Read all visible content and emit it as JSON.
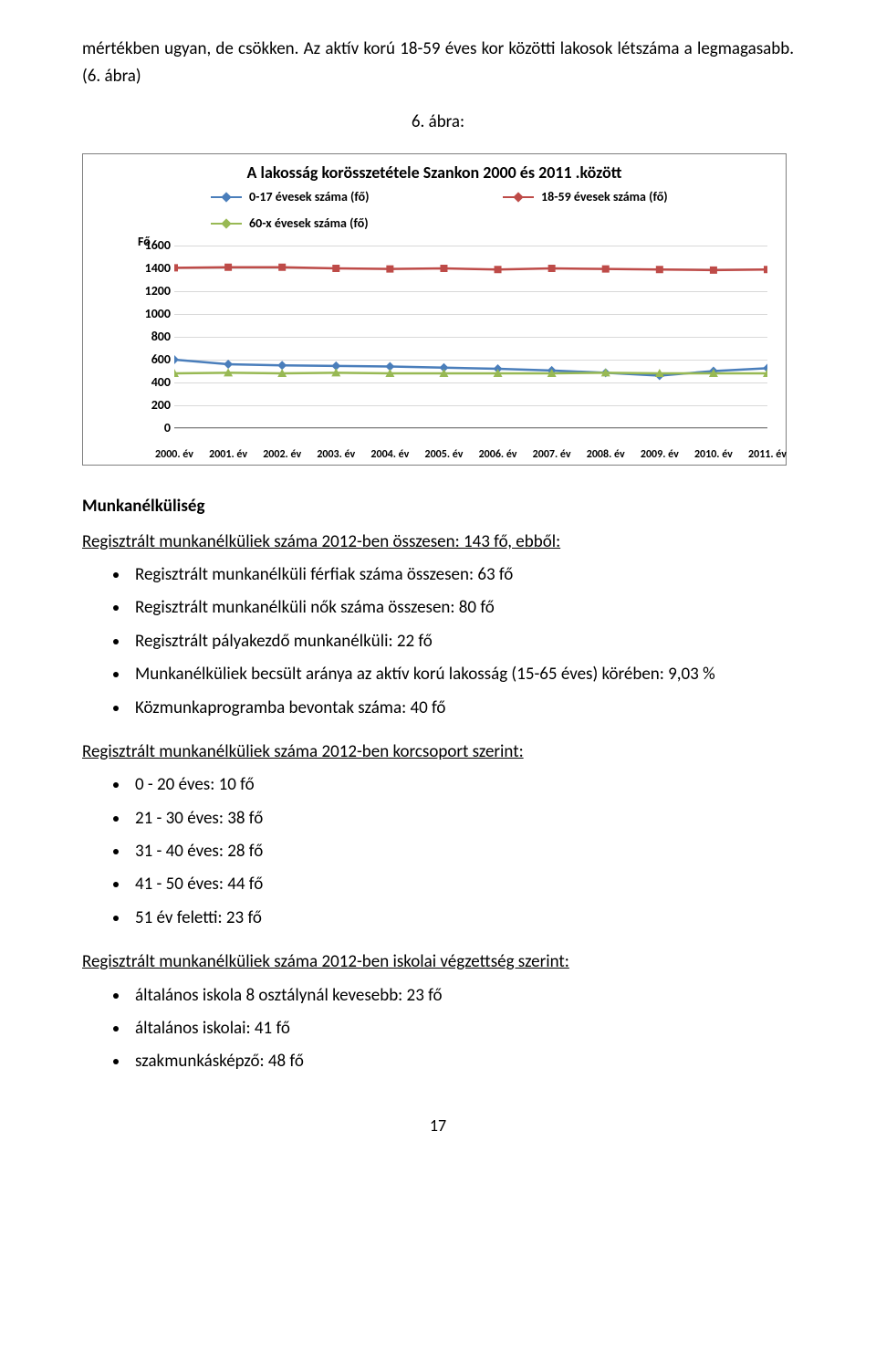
{
  "intro": {
    "line1": "mértékben ugyan, de csökken. Az aktív korú 18-59 éves kor közötti lakosok létszáma a legmagasabb. (6. ábra)",
    "fig_label": "6. ábra:"
  },
  "chart": {
    "title": "A lakosság korösszetétele Szankon 2000 és 2011 .között",
    "y_axis_title": "Fő",
    "legend": [
      {
        "label": "0-17 évesek száma (fő)",
        "color": "#4a7ebb"
      },
      {
        "label": "18-59 évesek száma (fő)",
        "color": "#be4b48"
      },
      {
        "label": "60-x évesek száma (fő)",
        "color": "#98b954"
      }
    ],
    "y_ticks": [
      "0",
      "200",
      "400",
      "600",
      "800",
      "1000",
      "1200",
      "1400",
      "1600"
    ],
    "x_labels": [
      "2000. év",
      "2001. év",
      "2002. év",
      "2003. év",
      "2004. év",
      "2005. év",
      "2006. év",
      "2007. év",
      "2008. év",
      "2009. év",
      "2010. év",
      "2011. év"
    ],
    "y_max": 1600,
    "series": [
      {
        "color": "#4a7ebb",
        "marker": "diamond",
        "values": [
          600,
          560,
          550,
          545,
          540,
          530,
          520,
          505,
          485,
          460,
          500,
          525
        ]
      },
      {
        "color": "#be4b48",
        "marker": "square",
        "values": [
          1405,
          1410,
          1410,
          1400,
          1395,
          1400,
          1390,
          1400,
          1395,
          1390,
          1385,
          1390
        ]
      },
      {
        "color": "#98b954",
        "marker": "triangle",
        "values": [
          480,
          485,
          480,
          485,
          480,
          480,
          480,
          480,
          485,
          480,
          480,
          480
        ]
      }
    ],
    "grid_color": "#d9d9d9",
    "axis_color": "#7f7f7f",
    "background": "#ffffff"
  },
  "unemployment": {
    "heading": "Munkanélküliség",
    "intro": "Regisztrált munkanélküliek száma 2012-ben összesen: 143 fő, ebből:",
    "bullets": [
      "Regisztrált munkanélküli férfiak száma összesen: 63 fő",
      "Regisztrált munkanélküli nők száma összesen: 80 fő",
      "Regisztrált pályakezdő munkanélküli: 22 fő",
      "Munkanélküliek becsült aránya az aktív korú lakosság (15-65 éves) körében: 9,03 %",
      "Közmunkaprogramba bevontak száma: 40 fő"
    ]
  },
  "by_age": {
    "heading": "Regisztrált munkanélküliek száma 2012-ben korcsoport szerint:",
    "bullets": [
      "0 - 20 éves: 10 fő",
      "21 - 30 éves: 38 fő",
      "31 - 40 éves: 28 fő",
      "41 - 50 éves: 44 fő",
      "51 év feletti: 23 fő"
    ]
  },
  "by_education": {
    "heading": "Regisztrált munkanélküliek száma 2012-ben iskolai végzettség szerint:",
    "bullets": [
      "általános iskola 8 osztálynál kevesebb: 23 fő",
      "általános iskolai: 41 fő",
      "szakmunkásképző: 48 fő"
    ]
  },
  "page_number": "17"
}
